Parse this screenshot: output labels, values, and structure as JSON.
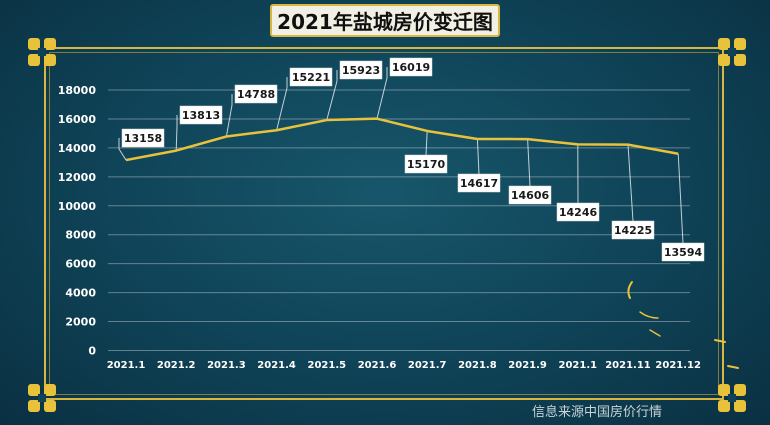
{
  "title": "2021年盐城房价变迁图",
  "source": "信息来源中国房价行情",
  "colors": {
    "line": "#e8c23a",
    "frame": "#d9b640",
    "background": "#0f4256"
  },
  "chart_data": {
    "type": "line",
    "title": "2021年盐城房价变迁图",
    "categories": [
      "2021.1",
      "2021.2",
      "2021.3",
      "2021.4",
      "2021.5",
      "2021.6",
      "2021.7",
      "2021.8",
      "2021.9",
      "2021.1",
      "2021.11",
      "2021.12"
    ],
    "series": [
      {
        "values": [
          13158,
          13813,
          14788,
          15221,
          15923,
          16019,
          15170,
          14617,
          14606,
          14246,
          14225,
          13594
        ]
      }
    ],
    "yticks": [
      0,
      2000,
      4000,
      6000,
      8000,
      10000,
      12000,
      14000,
      16000,
      18000
    ],
    "ylim": [
      0,
      18000
    ],
    "grid": true,
    "legend": "none"
  }
}
